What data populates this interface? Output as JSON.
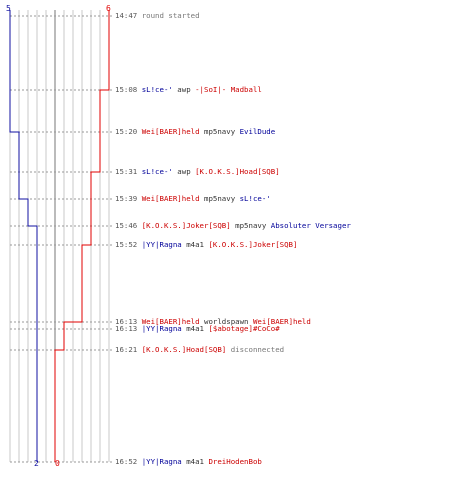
{
  "colors": {
    "team_blue": "#1010a0",
    "team_red": "#e00000",
    "grid": "#c8c8c8",
    "grid_mid": "#777777"
  },
  "score": {
    "blue_start": "5",
    "red_start": "6",
    "blue_end": "2",
    "red_end": "0"
  },
  "events": [
    {
      "time": "14:47",
      "parts": [
        {
          "text": "round started",
          "style": "gray"
        }
      ]
    },
    {
      "time": "15:08",
      "parts": [
        {
          "text": "sL!ce-'",
          "style": "blue"
        },
        {
          "text": " awp ",
          "style": "plain"
        },
        {
          "text": "-|SoI|- Madball",
          "style": "red"
        }
      ]
    },
    {
      "time": "15:20",
      "parts": [
        {
          "text": "Wei[BAER]held",
          "style": "red"
        },
        {
          "text": " mp5navy ",
          "style": "plain"
        },
        {
          "text": "EvilDude",
          "style": "blue"
        }
      ]
    },
    {
      "time": "15:31",
      "parts": [
        {
          "text": "sL!ce-'",
          "style": "blue"
        },
        {
          "text": " awp ",
          "style": "plain"
        },
        {
          "text": "[K.O.K.S.]Hoad[SQB]",
          "style": "red"
        }
      ]
    },
    {
      "time": "15:39",
      "parts": [
        {
          "text": "Wei[BAER]held",
          "style": "red"
        },
        {
          "text": " mp5navy ",
          "style": "plain"
        },
        {
          "text": "sL!ce-'",
          "style": "blue"
        }
      ]
    },
    {
      "time": "15:46",
      "parts": [
        {
          "text": "[K.O.K.S.]Joker[SQB]",
          "style": "red"
        },
        {
          "text": " mp5navy ",
          "style": "plain"
        },
        {
          "text": "Absoluter Versager",
          "style": "blue"
        }
      ]
    },
    {
      "time": "15:52",
      "parts": [
        {
          "text": "|YY|Ragna",
          "style": "blue"
        },
        {
          "text": " m4a1 ",
          "style": "plain"
        },
        {
          "text": "[K.O.K.S.]Joker[SQB]",
          "style": "red"
        }
      ]
    },
    {
      "time": "16:13",
      "parts": [
        {
          "text": "Wei[BAER]held",
          "style": "red"
        },
        {
          "text": " worldspawn ",
          "style": "plain"
        },
        {
          "text": "Wei[BAER]held",
          "style": "red"
        }
      ]
    },
    {
      "time": "16:13",
      "parts": [
        {
          "text": "|YY|Ragna",
          "style": "blue"
        },
        {
          "text": " m4a1 ",
          "style": "plain"
        },
        {
          "text": "[$abotage]#CoCo#",
          "style": "red"
        }
      ]
    },
    {
      "time": "16:21",
      "parts": [
        {
          "text": "[K.O.K.S.]Hoad[SQB]",
          "style": "red"
        },
        {
          "text": " disconnected",
          "style": "gray"
        }
      ]
    },
    {
      "time": "16:52",
      "parts": [
        {
          "text": "|YY|Ragna",
          "style": "blue"
        },
        {
          "text": " m4a1 ",
          "style": "plain"
        },
        {
          "text": "DreiHodenBob",
          "style": "red"
        }
      ]
    }
  ]
}
